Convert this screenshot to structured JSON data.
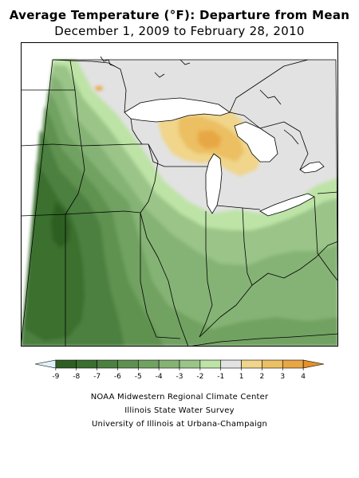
{
  "title": {
    "line1": "Average Temperature (°F): Departure from Mean",
    "line2": "December 1, 2009 to February 28, 2010"
  },
  "legend": {
    "ticks": [
      "-9",
      "-8",
      "-7",
      "-6",
      "-5",
      "-4",
      "-3",
      "-2",
      "-1",
      "1",
      "2",
      "3",
      "4"
    ],
    "colors": [
      "#dff2fb",
      "#2e5e24",
      "#3b6f2f",
      "#4c8040",
      "#5e9150",
      "#71a262",
      "#85b374",
      "#9ac488",
      "#bde3a6",
      "#e2e2e2",
      "#f0d58a",
      "#ebbf62",
      "#e8a744",
      "#e6902a"
    ]
  },
  "credits": [
    "NOAA Midwestern Regional Climate Center",
    "Illinois State Water Survey",
    "University of Illinois at Urbana-Champaign"
  ]
}
